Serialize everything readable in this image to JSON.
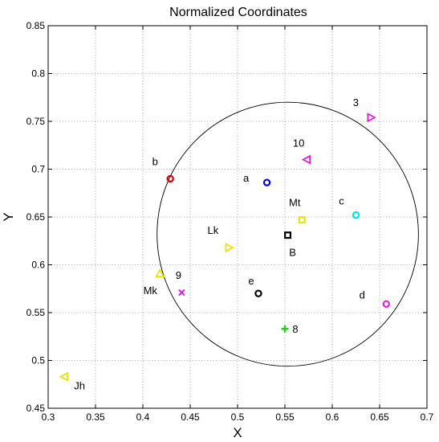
{
  "chart_data": {
    "type": "scatter",
    "title": "Normalized Coordinates",
    "xlabel": "X",
    "ylabel": "Y",
    "xlim": [
      0.3,
      0.7
    ],
    "ylim": [
      0.45,
      0.85
    ],
    "grid": true,
    "xticks": [
      "0.3",
      "0.35",
      "0.4",
      "0.45",
      "0.5",
      "0.55",
      "0.6",
      "0.65",
      "0.7"
    ],
    "yticks": [
      "0.45",
      "0.5",
      "0.55",
      "0.6",
      "0.65",
      "0.7",
      "0.75",
      "0.8",
      "0.85"
    ],
    "circle": {
      "center": [
        0.553,
        0.632
      ],
      "radius": 0.138
    },
    "points": [
      {
        "label": "a",
        "x": 0.531,
        "y": 0.686,
        "marker": "circle",
        "color": "#0000ff"
      },
      {
        "label": "b",
        "x": 0.429,
        "y": 0.69,
        "marker": "circle",
        "color": "#cc0000"
      },
      {
        "label": "c",
        "x": 0.625,
        "y": 0.652,
        "marker": "circle",
        "color": "#00e5e5"
      },
      {
        "label": "d",
        "x": 0.657,
        "y": 0.559,
        "marker": "circle",
        "color": "#e020e0"
      },
      {
        "label": "e",
        "x": 0.522,
        "y": 0.57,
        "marker": "circle",
        "color": "#000000"
      },
      {
        "label": "B",
        "x": 0.553,
        "y": 0.631,
        "marker": "square",
        "color": "#000000"
      },
      {
        "label": "Mt",
        "x": 0.568,
        "y": 0.647,
        "marker": "square",
        "color": "#e6e600"
      },
      {
        "label": "3",
        "x": 0.641,
        "y": 0.754,
        "marker": "triangle-right",
        "color": "#e020e0"
      },
      {
        "label": "10",
        "x": 0.573,
        "y": 0.71,
        "marker": "triangle-left",
        "color": "#e020e0"
      },
      {
        "label": "Lk",
        "x": 0.491,
        "y": 0.618,
        "marker": "triangle-right",
        "color": "#e6e600"
      },
      {
        "label": "Mk",
        "x": 0.418,
        "y": 0.591,
        "marker": "triangle-up",
        "color": "#e6e600"
      },
      {
        "label": "9",
        "x": 0.441,
        "y": 0.571,
        "marker": "x",
        "color": "#e020e0"
      },
      {
        "label": "8",
        "x": 0.55,
        "y": 0.533,
        "marker": "plus",
        "color": "#22cc22"
      },
      {
        "label": "Jh",
        "x": 0.317,
        "y": 0.483,
        "marker": "triangle-left",
        "color": "#e6e600"
      }
    ]
  }
}
